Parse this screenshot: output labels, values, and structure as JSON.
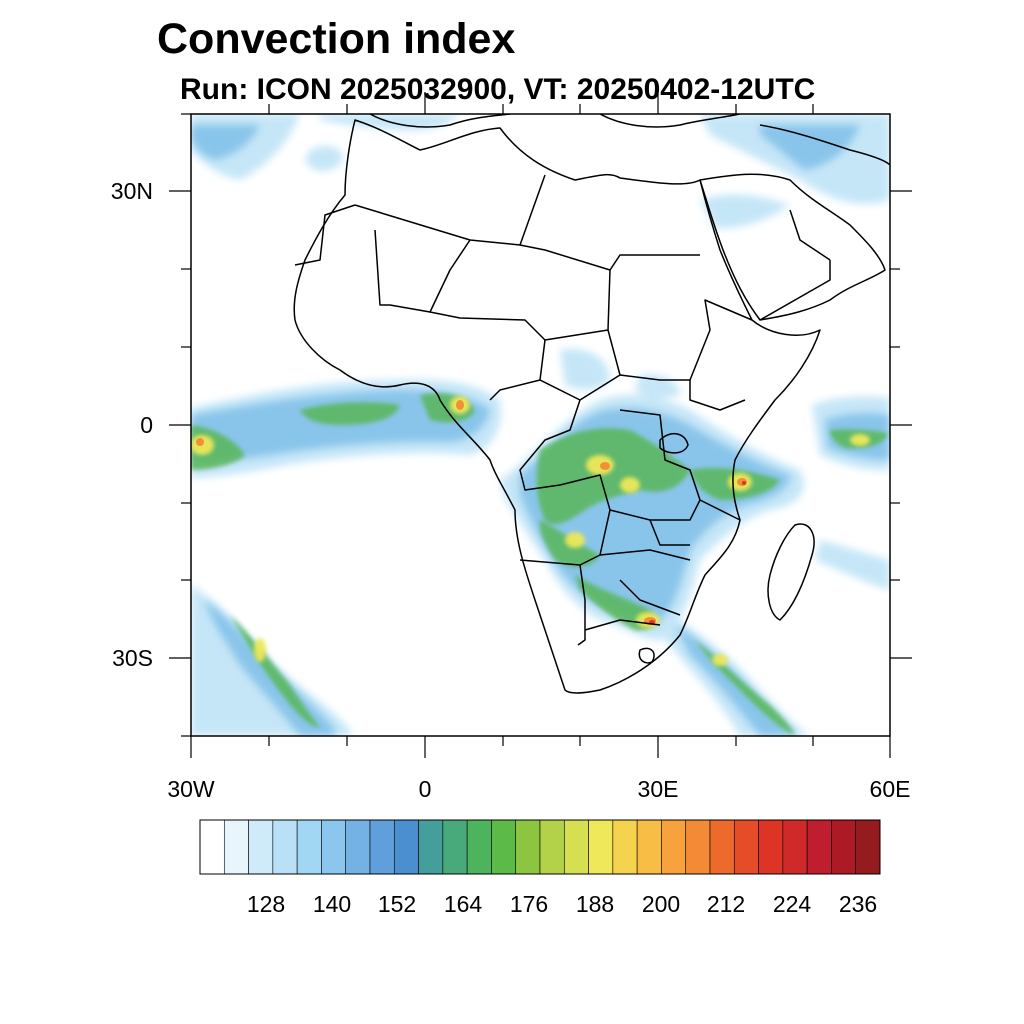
{
  "header": {
    "title": "Convection index",
    "subtitle": "Run: ICON 2025032900,  VT: 20250402-12UTC"
  },
  "axes": {
    "lon_labels": [
      "30W",
      "0",
      "30E",
      "60E"
    ],
    "lat_labels": [
      "30N",
      "0",
      "30S"
    ]
  },
  "colorbar": {
    "labels": [
      "128",
      "140",
      "152",
      "164",
      "176",
      "188",
      "200",
      "212",
      "224",
      "236"
    ],
    "colors": [
      "#ffffff",
      "#e9f5fc",
      "#cfeaf8",
      "#b8e0f6",
      "#a2d7f4",
      "#8ac6ee",
      "#74b2e6",
      "#5e9fdc",
      "#4c8fd0",
      "#449e9c",
      "#48a97b",
      "#4db35c",
      "#5cba48",
      "#8cc641",
      "#b3d24a",
      "#d5df4f",
      "#eee85a",
      "#f6d34e",
      "#f7bd45",
      "#f7a23d",
      "#f28a36",
      "#ec6a2c",
      "#e44d28",
      "#dc3526",
      "#cf2a29",
      "#be1e2d",
      "#ab1a25",
      "#941c1f"
    ]
  },
  "legend": {
    "coastline_color": "#000000",
    "land_color": "#ffffff"
  }
}
